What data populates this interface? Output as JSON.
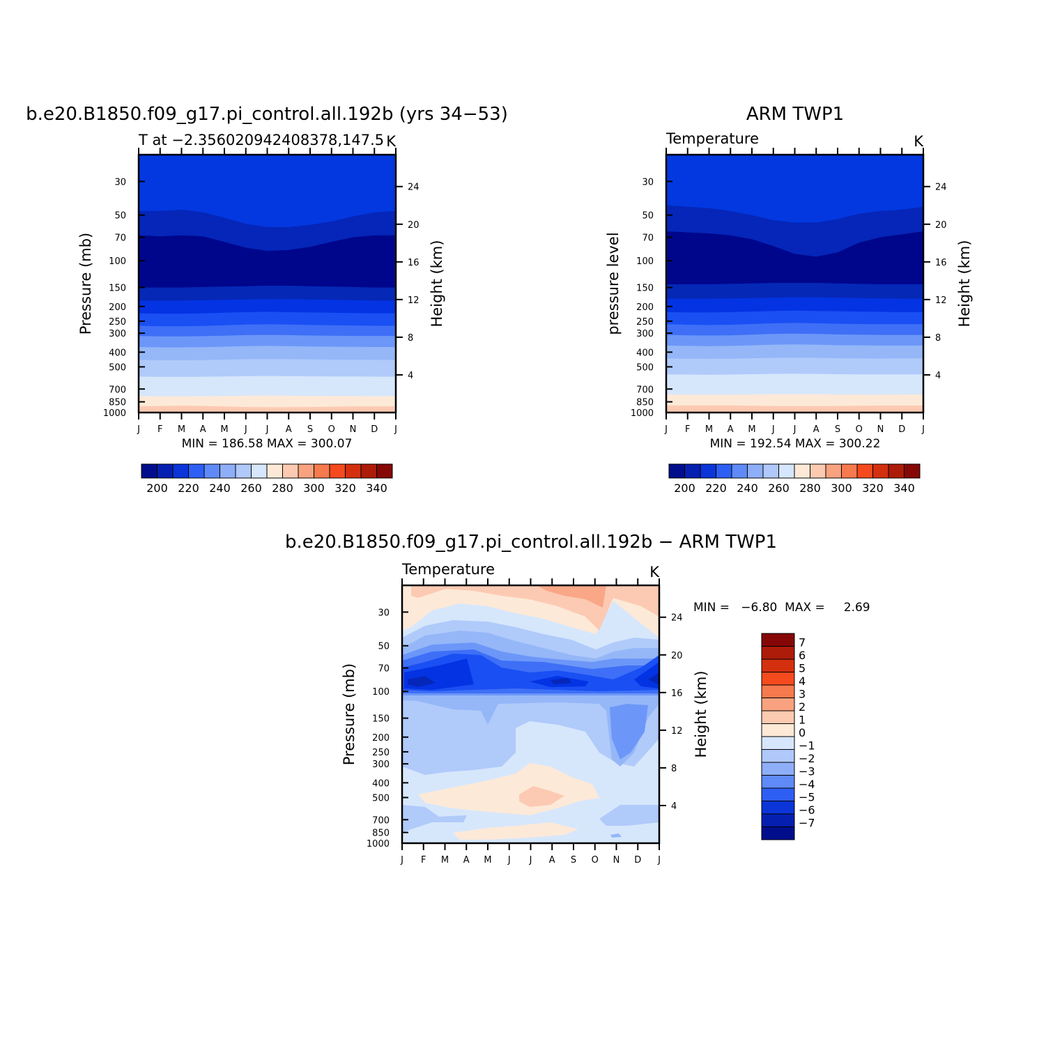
{
  "chart_data": [
    {
      "type": "heatmap",
      "panel": "model",
      "title": "b.e20.B1850.f09_g17.pi_control.all.192b (yrs 34−53)",
      "subtitle_left": "T at −2.356020942408378,147.5",
      "subtitle_right": "K",
      "xlabel": "",
      "ylabel": "Pressure (mb)",
      "y2label": "Height (km)",
      "x_ticks": [
        "J",
        "F",
        "M",
        "A",
        "M",
        "J",
        "J",
        "A",
        "S",
        "O",
        "N",
        "D",
        "J"
      ],
      "y_ticks": [
        "30",
        "50",
        "70",
        "100",
        "150",
        "200",
        "250",
        "300",
        "400",
        "500",
        "700",
        "850",
        "1000"
      ],
      "y2_ticks": [
        "24",
        "20",
        "16",
        "12",
        "8",
        "4"
      ],
      "ylim": [
        1000,
        20
      ],
      "minmax_text": "MIN =   186.58  MAX =   300.07",
      "min": 186.58,
      "max": 300.07,
      "contour_levels": [
        195,
        200,
        205,
        210,
        215,
        220,
        225,
        230,
        235,
        240,
        245,
        250,
        255,
        260,
        265,
        270,
        275,
        280,
        285,
        290,
        295,
        300,
        305
      ],
      "colorbar": {
        "orientation": "horizontal",
        "labels": [
          "200",
          "220",
          "240",
          "260",
          "280",
          "300",
          "320",
          "340"
        ],
        "colors": [
          "#000e8c",
          "#0520b0",
          "#0b35d8",
          "#2e5ff4",
          "#5f8af8",
          "#8eaef8",
          "#b0c8fa",
          "#d6e6fc",
          "#fde9d6",
          "#fccab0",
          "#f9a27f",
          "#f77a4e",
          "#f44a1e",
          "#d4300f",
          "#ad1c08",
          "#850806"
        ]
      },
      "contour_fill_colors": [
        "#0338e0",
        "#0526b8",
        "#00068c",
        "#0528b6",
        "#0333e3",
        "#1a4ff4",
        "#3e6ff6",
        "#6c97f8",
        "#95b7f8",
        "#b0cafa",
        "#d6e7fc",
        "#fde9d8",
        "#fccab3",
        "#f9a787"
      ],
      "series_band_boundaries_mb": [
        {
          "name": "b1",
          "values": [
            47,
            47,
            46,
            48,
            52,
            57,
            60,
            60,
            58,
            55,
            51,
            48,
            47
          ]
        },
        {
          "name": "b2",
          "values": [
            68,
            69,
            68,
            69,
            75,
            82,
            86,
            85,
            81,
            75,
            70,
            68,
            68
          ]
        },
        {
          "name": "b3",
          "values": [
            150,
            150,
            150,
            149,
            148,
            147,
            146,
            146,
            147,
            148,
            149,
            150,
            150
          ]
        },
        {
          "name": "b4",
          "values": [
            183,
            183,
            183,
            182,
            181,
            180,
            179,
            179,
            180,
            181,
            182,
            183,
            183
          ]
        },
        {
          "name": "b5",
          "values": [
            222,
            223,
            223,
            222,
            220,
            218,
            217,
            218,
            219,
            220,
            221,
            222,
            222
          ]
        },
        {
          "name": "b6",
          "values": [
            268,
            270,
            270,
            269,
            266,
            263,
            262,
            263,
            265,
            266,
            267,
            268,
            268
          ]
        },
        {
          "name": "b7",
          "values": [
            313,
            315,
            315,
            314,
            312,
            309,
            308,
            309,
            311,
            312,
            313,
            313,
            313
          ]
        },
        {
          "name": "b8",
          "values": [
            370,
            372,
            372,
            371,
            368,
            365,
            364,
            365,
            367,
            368,
            369,
            370,
            370
          ]
        },
        {
          "name": "b9",
          "values": [
            450,
            452,
            452,
            451,
            448,
            445,
            444,
            445,
            447,
            448,
            449,
            450,
            450
          ]
        },
        {
          "name": "b10",
          "values": [
            580,
            582,
            582,
            581,
            578,
            575,
            574,
            575,
            577,
            578,
            579,
            580,
            580
          ]
        },
        {
          "name": "b11",
          "values": [
            780,
            782,
            782,
            781,
            778,
            775,
            774,
            775,
            777,
            778,
            779,
            780,
            780
          ]
        },
        {
          "name": "b12",
          "values": [
            910,
            905,
            902,
            904,
            912,
            920,
            922,
            922,
            920,
            915,
            910,
            910,
            910
          ]
        }
      ]
    },
    {
      "type": "heatmap",
      "panel": "obs",
      "title": "ARM TWP1",
      "subtitle_left": "Temperature",
      "subtitle_right": "K",
      "xlabel": "",
      "ylabel": "pressure level",
      "y2label": "Height (km)",
      "x_ticks": [
        "J",
        "F",
        "M",
        "A",
        "M",
        "J",
        "J",
        "A",
        "S",
        "O",
        "N",
        "D",
        "J"
      ],
      "y_ticks": [
        "30",
        "50",
        "70",
        "100",
        "150",
        "200",
        "250",
        "300",
        "400",
        "500",
        "700",
        "850",
        "1000"
      ],
      "y2_ticks": [
        "24",
        "20",
        "16",
        "12",
        "8",
        "4"
      ],
      "ylim": [
        1000,
        20
      ],
      "minmax_text": "MIN =   192.54  MAX =   300.22",
      "min": 192.54,
      "max": 300.22,
      "colorbar": {
        "orientation": "horizontal",
        "labels": [
          "200",
          "220",
          "240",
          "260",
          "280",
          "300",
          "320",
          "340"
        ],
        "colors": [
          "#000e8c",
          "#0520b0",
          "#0b35d8",
          "#2e5ff4",
          "#5f8af8",
          "#8eaef8",
          "#b0c8fa",
          "#d6e6fc",
          "#fde9d6",
          "#fccab0",
          "#f9a27f",
          "#f77a4e",
          "#f44a1e",
          "#d4300f",
          "#ad1c08",
          "#850806"
        ]
      },
      "contour_fill_colors": [
        "#0338e0",
        "#0526b8",
        "#00068c",
        "#0528b6",
        "#0333e3",
        "#1a4ff4",
        "#3e6ff6",
        "#6c97f8",
        "#95b7f8",
        "#b0cafa",
        "#d6e7fc",
        "#fde9d8",
        "#fccab3",
        "#f9a787"
      ],
      "series_band_boundaries_mb": [
        {
          "name": "b1",
          "values": [
            43,
            44,
            45,
            47,
            50,
            54,
            56,
            56,
            53,
            49,
            47,
            46,
            44
          ]
        },
        {
          "name": "b2",
          "values": [
            64,
            65,
            66,
            68,
            72,
            80,
            90,
            94,
            88,
            76,
            70,
            67,
            64
          ]
        },
        {
          "name": "b3",
          "values": [
            143,
            143,
            143,
            142,
            141,
            140,
            140,
            140,
            141,
            142,
            143,
            143,
            143
          ]
        },
        {
          "name": "b4",
          "values": [
            178,
            178,
            178,
            177,
            176,
            175,
            174,
            174,
            175,
            176,
            177,
            178,
            178
          ]
        },
        {
          "name": "b5",
          "values": [
            218,
            219,
            219,
            218,
            216,
            214,
            213,
            214,
            215,
            216,
            217,
            218,
            218
          ]
        },
        {
          "name": "b6",
          "values": [
            262,
            264,
            265,
            264,
            261,
            258,
            257,
            258,
            260,
            261,
            262,
            262,
            262
          ]
        },
        {
          "name": "b7",
          "values": [
            308,
            310,
            311,
            310,
            307,
            303,
            302,
            303,
            306,
            307,
            308,
            308,
            308
          ]
        },
        {
          "name": "b8",
          "values": [
            362,
            364,
            365,
            364,
            361,
            357,
            356,
            357,
            360,
            361,
            362,
            362,
            362
          ]
        },
        {
          "name": "b9",
          "values": [
            440,
            442,
            443,
            442,
            439,
            436,
            435,
            436,
            439,
            440,
            441,
            440,
            440
          ]
        },
        {
          "name": "b10",
          "values": [
            560,
            562,
            563,
            562,
            559,
            556,
            555,
            556,
            559,
            560,
            561,
            560,
            560
          ]
        },
        {
          "name": "b11",
          "values": [
            760,
            762,
            763,
            762,
            760,
            758,
            757,
            758,
            760,
            761,
            761,
            760,
            760
          ]
        },
        {
          "name": "b12",
          "values": [
            900,
            898,
            897,
            898,
            902,
            905,
            906,
            906,
            905,
            902,
            900,
            900,
            900
          ]
        }
      ]
    },
    {
      "type": "heatmap",
      "panel": "diff",
      "title": "b.e20.B1850.f09_g17.pi_control.all.192b − ARM TWP1",
      "subtitle_left": "Temperature",
      "subtitle_right": "K",
      "xlabel": "",
      "ylabel": "Pressure (mb)",
      "y2label": "Height (km)",
      "x_ticks": [
        "J",
        "F",
        "M",
        "A",
        "M",
        "J",
        "J",
        "A",
        "S",
        "O",
        "N",
        "D",
        "J"
      ],
      "y_ticks": [
        "30",
        "50",
        "70",
        "100",
        "150",
        "200",
        "250",
        "300",
        "400",
        "500",
        "700",
        "850",
        "1000"
      ],
      "y2_ticks": [
        "24",
        "20",
        "16",
        "12",
        "8",
        "4"
      ],
      "ylim": [
        1000,
        20
      ],
      "minmax_text": "MIN =   −6.80  MAX =     2.69",
      "min": -6.8,
      "max": 2.69,
      "colorbar": {
        "orientation": "vertical",
        "labels": [
          "7",
          "6",
          "5",
          "4",
          "3",
          "2",
          "1",
          "0",
          "−1",
          "−2",
          "−3",
          "−4",
          "−5",
          "−6",
          "−7"
        ],
        "colors": [
          "#850806",
          "#ad1c08",
          "#d4300f",
          "#f44a1e",
          "#f77a4e",
          "#f9a27f",
          "#fccab0",
          "#fde9d6",
          "#d6e6fc",
          "#b0c8fa",
          "#8eaef8",
          "#5f8af8",
          "#2e5ff4",
          "#0b35d8",
          "#0520b0",
          "#000e8c"
        ]
      }
    }
  ]
}
